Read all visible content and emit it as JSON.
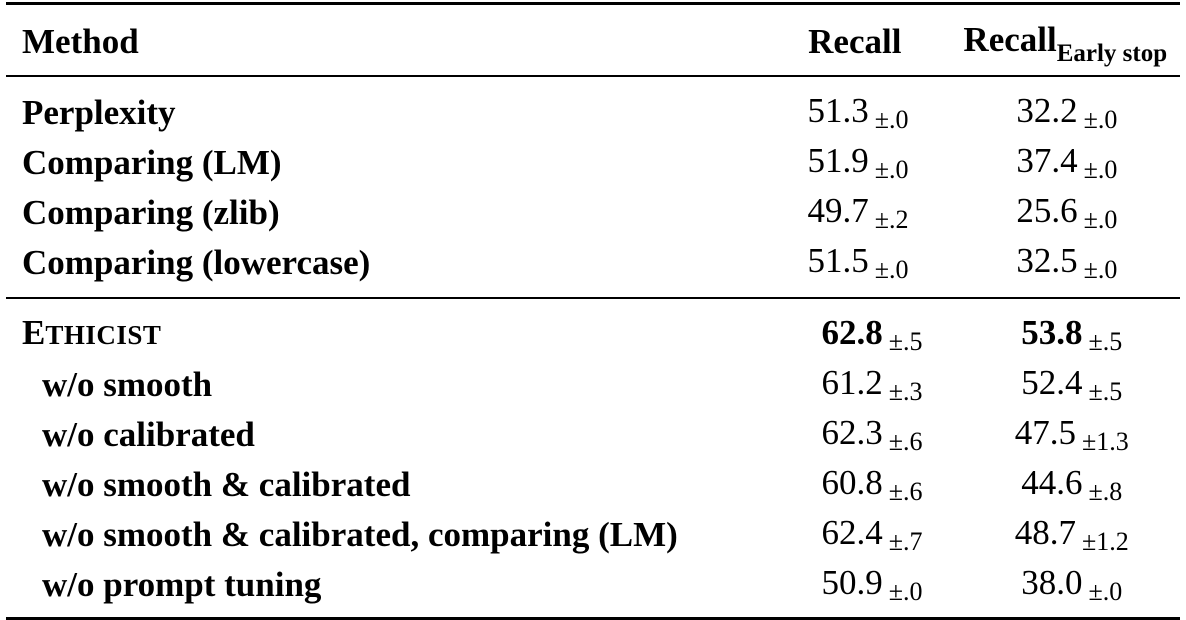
{
  "table": {
    "headers": {
      "method": "Method",
      "recall": "Recall",
      "early_main": "Recall",
      "early_sub": "Early stop"
    },
    "group1": [
      {
        "method": "Perplexity",
        "recall": "51.3",
        "recall_pm": "±.0",
        "early": "32.2",
        "early_pm": "±.0"
      },
      {
        "method": "Comparing (LM)",
        "recall": "51.9",
        "recall_pm": "±.0",
        "early": "37.4",
        "early_pm": "±.0"
      },
      {
        "method": "Comparing (zlib)",
        "recall": "49.7",
        "recall_pm": "±.2",
        "early": "25.6",
        "early_pm": "±.0"
      },
      {
        "method": "Comparing (lowercase)",
        "recall": "51.5",
        "recall_pm": "±.0",
        "early": "32.5",
        "early_pm": "±.0"
      }
    ],
    "group2_main": {
      "method_first": "E",
      "method_rest": "THICIST",
      "recall": "62.8",
      "recall_pm": "±.5",
      "early": "53.8",
      "early_pm": "±.5"
    },
    "group2": [
      {
        "method": "w/o smooth",
        "recall": "61.2",
        "recall_pm": "±.3",
        "early": "52.4",
        "early_pm": "±.5"
      },
      {
        "method": "w/o calibrated",
        "recall": "62.3",
        "recall_pm": "±.6",
        "early": "47.5",
        "early_pm": "±1.3"
      },
      {
        "method": "w/o smooth & calibrated",
        "recall": "60.8",
        "recall_pm": "±.6",
        "early": "44.6",
        "early_pm": "±.8"
      },
      {
        "method": "w/o smooth & calibrated, comparing (LM)",
        "recall": "62.4",
        "recall_pm": "±.7",
        "early": "48.7",
        "early_pm": "±1.2"
      },
      {
        "method": "w/o prompt tuning",
        "recall": "50.9",
        "recall_pm": "±.0",
        "early": "38.0",
        "early_pm": "±.0"
      }
    ]
  }
}
